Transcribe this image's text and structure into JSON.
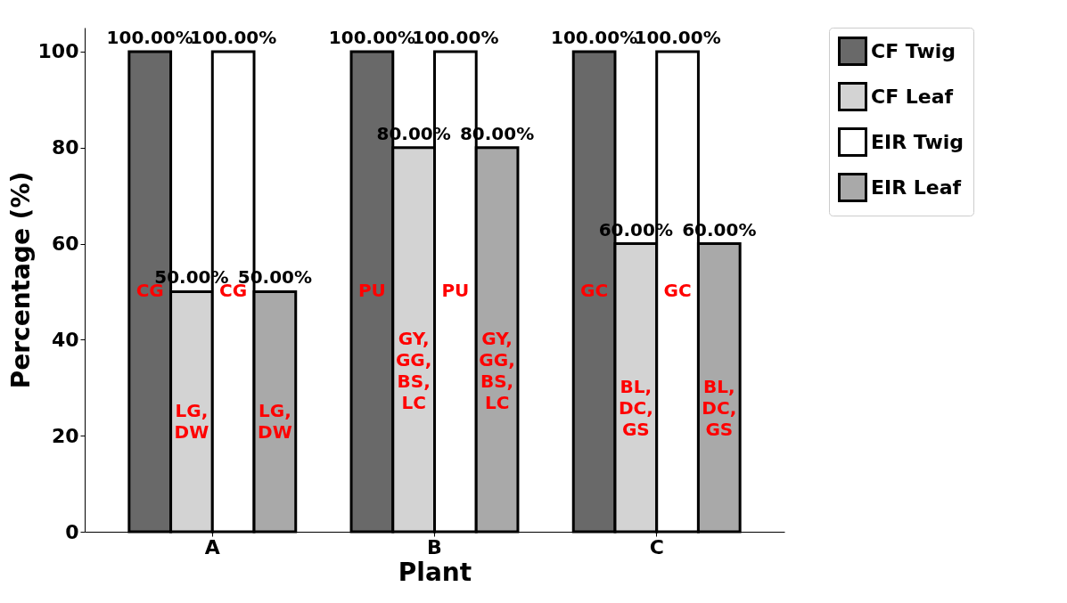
{
  "chart_data": {
    "type": "bar",
    "xlabel": "Plant",
    "ylabel": "Percentage (%)",
    "categories": [
      "A",
      "B",
      "C"
    ],
    "series": [
      {
        "name": "CF Twig",
        "color": "#696969",
        "values": [
          100,
          100,
          100
        ],
        "value_labels": [
          "100.00%",
          "100.00%",
          "100.00%"
        ]
      },
      {
        "name": "CF Leaf",
        "color": "#d3d3d3",
        "values": [
          50,
          80,
          60
        ],
        "value_labels": [
          "50.00%",
          "80.00%",
          "60.00%"
        ]
      },
      {
        "name": "EIR Twig",
        "color": "#ffffff",
        "values": [
          100,
          100,
          100
        ],
        "value_labels": [
          "100.00%",
          "100.00%",
          "100.00%"
        ]
      },
      {
        "name": "EIR Leaf",
        "color": "#a9a9a9",
        "values": [
          50,
          80,
          60
        ],
        "value_labels": [
          "50.00%",
          "80.00%",
          "60.00%"
        ]
      }
    ],
    "annotations": [
      {
        "text": "CG",
        "x": "A",
        "y": 50
      },
      {
        "text": "LG, DW",
        "x": "A",
        "y": 25
      },
      {
        "text": "CG",
        "x": "A",
        "y": 50
      },
      {
        "text": "LG, DW",
        "x": "A",
        "y": 25
      },
      {
        "text": "PU",
        "x": "B",
        "y": 50
      },
      {
        "text": "GY, GG, BS, LC",
        "x": "B",
        "y": 40
      },
      {
        "text": "PU",
        "x": "B",
        "y": 50
      },
      {
        "text": "GY, GG, BS, LC",
        "x": "B",
        "y": 40
      },
      {
        "text": "GC",
        "x": "C",
        "y": 50
      },
      {
        "text": "BL, DC, GS",
        "x": "C",
        "y": 30
      },
      {
        "text": "GC",
        "x": "C",
        "y": 50
      },
      {
        "text": "BL, DC, GS",
        "x": "C",
        "y": 30
      }
    ],
    "ylim": [
      0,
      105
    ],
    "yticks": [
      0,
      20,
      40,
      60,
      80,
      100
    ],
    "legend": "top right",
    "grid": false
  }
}
